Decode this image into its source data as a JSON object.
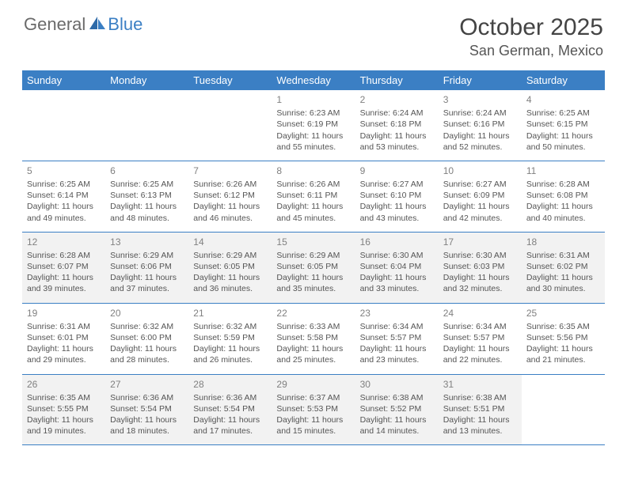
{
  "brand": {
    "part1": "General",
    "part2": "Blue"
  },
  "title": "October 2025",
  "location": "San German, Mexico",
  "colors": {
    "header_bg": "#3b7fc4",
    "header_fg": "#ffffff",
    "row_alt_bg": "#f2f2f2",
    "text": "#555555",
    "daynum": "#808080",
    "rule": "#3b7fc4"
  },
  "day_headers": [
    "Sunday",
    "Monday",
    "Tuesday",
    "Wednesday",
    "Thursday",
    "Friday",
    "Saturday"
  ],
  "weeks": [
    [
      null,
      null,
      null,
      {
        "n": "1",
        "sr": "Sunrise: 6:23 AM",
        "ss": "Sunset: 6:19 PM",
        "d1": "Daylight: 11 hours",
        "d2": "and 55 minutes."
      },
      {
        "n": "2",
        "sr": "Sunrise: 6:24 AM",
        "ss": "Sunset: 6:18 PM",
        "d1": "Daylight: 11 hours",
        "d2": "and 53 minutes."
      },
      {
        "n": "3",
        "sr": "Sunrise: 6:24 AM",
        "ss": "Sunset: 6:16 PM",
        "d1": "Daylight: 11 hours",
        "d2": "and 52 minutes."
      },
      {
        "n": "4",
        "sr": "Sunrise: 6:25 AM",
        "ss": "Sunset: 6:15 PM",
        "d1": "Daylight: 11 hours",
        "d2": "and 50 minutes."
      }
    ],
    [
      {
        "n": "5",
        "sr": "Sunrise: 6:25 AM",
        "ss": "Sunset: 6:14 PM",
        "d1": "Daylight: 11 hours",
        "d2": "and 49 minutes."
      },
      {
        "n": "6",
        "sr": "Sunrise: 6:25 AM",
        "ss": "Sunset: 6:13 PM",
        "d1": "Daylight: 11 hours",
        "d2": "and 48 minutes."
      },
      {
        "n": "7",
        "sr": "Sunrise: 6:26 AM",
        "ss": "Sunset: 6:12 PM",
        "d1": "Daylight: 11 hours",
        "d2": "and 46 minutes."
      },
      {
        "n": "8",
        "sr": "Sunrise: 6:26 AM",
        "ss": "Sunset: 6:11 PM",
        "d1": "Daylight: 11 hours",
        "d2": "and 45 minutes."
      },
      {
        "n": "9",
        "sr": "Sunrise: 6:27 AM",
        "ss": "Sunset: 6:10 PM",
        "d1": "Daylight: 11 hours",
        "d2": "and 43 minutes."
      },
      {
        "n": "10",
        "sr": "Sunrise: 6:27 AM",
        "ss": "Sunset: 6:09 PM",
        "d1": "Daylight: 11 hours",
        "d2": "and 42 minutes."
      },
      {
        "n": "11",
        "sr": "Sunrise: 6:28 AM",
        "ss": "Sunset: 6:08 PM",
        "d1": "Daylight: 11 hours",
        "d2": "and 40 minutes."
      }
    ],
    [
      {
        "n": "12",
        "sr": "Sunrise: 6:28 AM",
        "ss": "Sunset: 6:07 PM",
        "d1": "Daylight: 11 hours",
        "d2": "and 39 minutes."
      },
      {
        "n": "13",
        "sr": "Sunrise: 6:29 AM",
        "ss": "Sunset: 6:06 PM",
        "d1": "Daylight: 11 hours",
        "d2": "and 37 minutes."
      },
      {
        "n": "14",
        "sr": "Sunrise: 6:29 AM",
        "ss": "Sunset: 6:05 PM",
        "d1": "Daylight: 11 hours",
        "d2": "and 36 minutes."
      },
      {
        "n": "15",
        "sr": "Sunrise: 6:29 AM",
        "ss": "Sunset: 6:05 PM",
        "d1": "Daylight: 11 hours",
        "d2": "and 35 minutes."
      },
      {
        "n": "16",
        "sr": "Sunrise: 6:30 AM",
        "ss": "Sunset: 6:04 PM",
        "d1": "Daylight: 11 hours",
        "d2": "and 33 minutes."
      },
      {
        "n": "17",
        "sr": "Sunrise: 6:30 AM",
        "ss": "Sunset: 6:03 PM",
        "d1": "Daylight: 11 hours",
        "d2": "and 32 minutes."
      },
      {
        "n": "18",
        "sr": "Sunrise: 6:31 AM",
        "ss": "Sunset: 6:02 PM",
        "d1": "Daylight: 11 hours",
        "d2": "and 30 minutes."
      }
    ],
    [
      {
        "n": "19",
        "sr": "Sunrise: 6:31 AM",
        "ss": "Sunset: 6:01 PM",
        "d1": "Daylight: 11 hours",
        "d2": "and 29 minutes."
      },
      {
        "n": "20",
        "sr": "Sunrise: 6:32 AM",
        "ss": "Sunset: 6:00 PM",
        "d1": "Daylight: 11 hours",
        "d2": "and 28 minutes."
      },
      {
        "n": "21",
        "sr": "Sunrise: 6:32 AM",
        "ss": "Sunset: 5:59 PM",
        "d1": "Daylight: 11 hours",
        "d2": "and 26 minutes."
      },
      {
        "n": "22",
        "sr": "Sunrise: 6:33 AM",
        "ss": "Sunset: 5:58 PM",
        "d1": "Daylight: 11 hours",
        "d2": "and 25 minutes."
      },
      {
        "n": "23",
        "sr": "Sunrise: 6:34 AM",
        "ss": "Sunset: 5:57 PM",
        "d1": "Daylight: 11 hours",
        "d2": "and 23 minutes."
      },
      {
        "n": "24",
        "sr": "Sunrise: 6:34 AM",
        "ss": "Sunset: 5:57 PM",
        "d1": "Daylight: 11 hours",
        "d2": "and 22 minutes."
      },
      {
        "n": "25",
        "sr": "Sunrise: 6:35 AM",
        "ss": "Sunset: 5:56 PM",
        "d1": "Daylight: 11 hours",
        "d2": "and 21 minutes."
      }
    ],
    [
      {
        "n": "26",
        "sr": "Sunrise: 6:35 AM",
        "ss": "Sunset: 5:55 PM",
        "d1": "Daylight: 11 hours",
        "d2": "and 19 minutes."
      },
      {
        "n": "27",
        "sr": "Sunrise: 6:36 AM",
        "ss": "Sunset: 5:54 PM",
        "d1": "Daylight: 11 hours",
        "d2": "and 18 minutes."
      },
      {
        "n": "28",
        "sr": "Sunrise: 6:36 AM",
        "ss": "Sunset: 5:54 PM",
        "d1": "Daylight: 11 hours",
        "d2": "and 17 minutes."
      },
      {
        "n": "29",
        "sr": "Sunrise: 6:37 AM",
        "ss": "Sunset: 5:53 PM",
        "d1": "Daylight: 11 hours",
        "d2": "and 15 minutes."
      },
      {
        "n": "30",
        "sr": "Sunrise: 6:38 AM",
        "ss": "Sunset: 5:52 PM",
        "d1": "Daylight: 11 hours",
        "d2": "and 14 minutes."
      },
      {
        "n": "31",
        "sr": "Sunrise: 6:38 AM",
        "ss": "Sunset: 5:51 PM",
        "d1": "Daylight: 11 hours",
        "d2": "and 13 minutes."
      },
      null
    ]
  ]
}
